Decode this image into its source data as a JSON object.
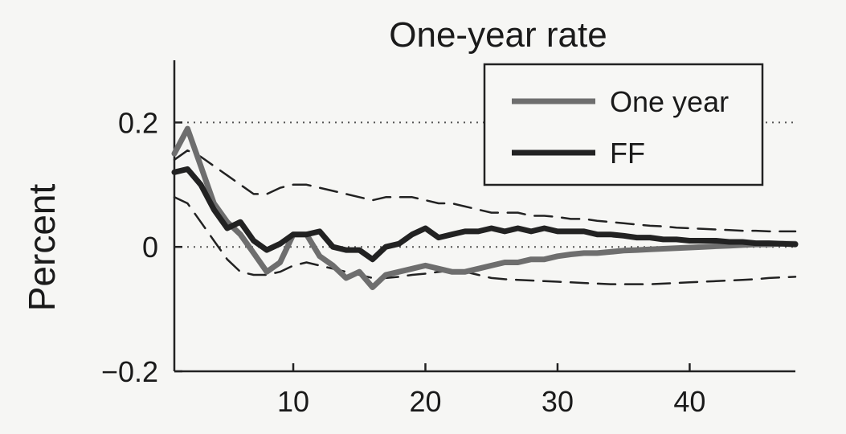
{
  "chart_data": {
    "type": "line",
    "title": "One-year rate",
    "xlabel": "",
    "ylabel": "Percent",
    "xlim": [
      1,
      48
    ],
    "ylim": [
      -0.2,
      0.3
    ],
    "xticks": [
      10,
      20,
      30,
      40
    ],
    "yticks": [
      -0.2,
      0,
      0.2
    ],
    "ytick_labels": [
      "−0.2",
      "0",
      "0.2"
    ],
    "xtick_labels": [
      "10",
      "20",
      "30",
      "40"
    ],
    "hgrid_dotted_at": [
      0,
      0.2
    ],
    "legend": {
      "placement": "top-right"
    },
    "x": [
      1,
      2,
      3,
      4,
      5,
      6,
      7,
      8,
      9,
      10,
      11,
      12,
      13,
      14,
      15,
      16,
      17,
      18,
      19,
      20,
      21,
      22,
      23,
      24,
      25,
      26,
      27,
      28,
      29,
      30,
      31,
      32,
      33,
      34,
      35,
      36,
      37,
      38,
      39,
      40,
      41,
      42,
      43,
      44,
      45,
      46,
      47,
      48
    ],
    "series": [
      {
        "name": "One year",
        "style": "solid",
        "color": "#6e6e6e",
        "values": [
          0.15,
          0.19,
          0.13,
          0.07,
          0.04,
          0.02,
          -0.01,
          -0.04,
          -0.025,
          0.02,
          0.02,
          -0.015,
          -0.03,
          -0.05,
          -0.04,
          -0.065,
          -0.045,
          -0.04,
          -0.035,
          -0.03,
          -0.035,
          -0.04,
          -0.04,
          -0.035,
          -0.03,
          -0.025,
          -0.025,
          -0.02,
          -0.02,
          -0.015,
          -0.012,
          -0.01,
          -0.01,
          -0.008,
          -0.006,
          -0.005,
          -0.004,
          -0.003,
          -0.002,
          -0.001,
          0.0,
          0.001,
          0.002,
          0.003,
          0.004,
          0.004,
          0.005,
          0.005
        ]
      },
      {
        "name": "FF",
        "style": "solid",
        "color": "#222222",
        "values": [
          0.12,
          0.125,
          0.1,
          0.06,
          0.03,
          0.04,
          0.01,
          -0.005,
          0.005,
          0.02,
          0.02,
          0.025,
          0.0,
          -0.005,
          -0.005,
          -0.02,
          0.0,
          0.005,
          0.02,
          0.03,
          0.015,
          0.02,
          0.025,
          0.025,
          0.03,
          0.025,
          0.03,
          0.025,
          0.03,
          0.025,
          0.025,
          0.025,
          0.02,
          0.02,
          0.018,
          0.015,
          0.015,
          0.012,
          0.012,
          0.01,
          0.01,
          0.01,
          0.008,
          0.008,
          0.006,
          0.006,
          0.005,
          0.004
        ]
      },
      {
        "style": "dashed",
        "color": "#222222",
        "values": [
          0.14,
          0.155,
          0.145,
          0.13,
          0.115,
          0.1,
          0.085,
          0.085,
          0.095,
          0.1,
          0.1,
          0.095,
          0.09,
          0.085,
          0.08,
          0.075,
          0.08,
          0.08,
          0.08,
          0.075,
          0.07,
          0.07,
          0.065,
          0.06,
          0.055,
          0.055,
          0.055,
          0.05,
          0.05,
          0.048,
          0.045,
          0.045,
          0.042,
          0.04,
          0.038,
          0.036,
          0.034,
          0.033,
          0.031,
          0.03,
          0.029,
          0.028,
          0.027,
          0.026,
          0.026,
          0.025,
          0.025,
          0.025
        ]
      },
      {
        "style": "dashed",
        "color": "#222222",
        "values": [
          0.08,
          0.07,
          0.04,
          0.01,
          -0.02,
          -0.04,
          -0.045,
          -0.045,
          -0.04,
          -0.03,
          -0.025,
          -0.03,
          -0.035,
          -0.04,
          -0.045,
          -0.05,
          -0.05,
          -0.048,
          -0.045,
          -0.043,
          -0.04,
          -0.038,
          -0.04,
          -0.045,
          -0.05,
          -0.052,
          -0.053,
          -0.054,
          -0.055,
          -0.056,
          -0.057,
          -0.058,
          -0.059,
          -0.06,
          -0.06,
          -0.06,
          -0.06,
          -0.059,
          -0.058,
          -0.057,
          -0.056,
          -0.055,
          -0.054,
          -0.053,
          -0.052,
          -0.05,
          -0.049,
          -0.048
        ]
      }
    ]
  }
}
